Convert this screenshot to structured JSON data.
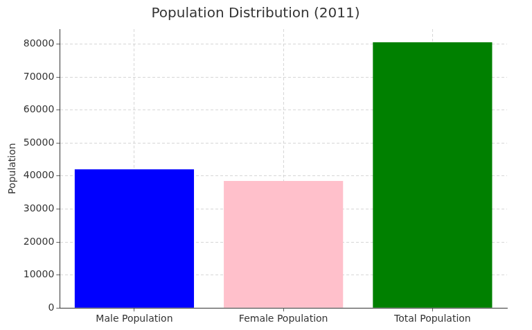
{
  "chart_data": {
    "type": "bar",
    "title": "Population Distribution (2011)",
    "y_label": "Population",
    "categories": [
      "Male Population",
      "Female Population",
      "Total Population"
    ],
    "values": [
      42000,
      38500,
      80500
    ],
    "colors": [
      "blue",
      "pink",
      "green"
    ],
    "ylim": [
      0,
      84500
    ],
    "yticks": [
      0,
      10000,
      20000,
      30000,
      40000,
      50000,
      60000,
      70000,
      80000
    ],
    "grid": true
  }
}
